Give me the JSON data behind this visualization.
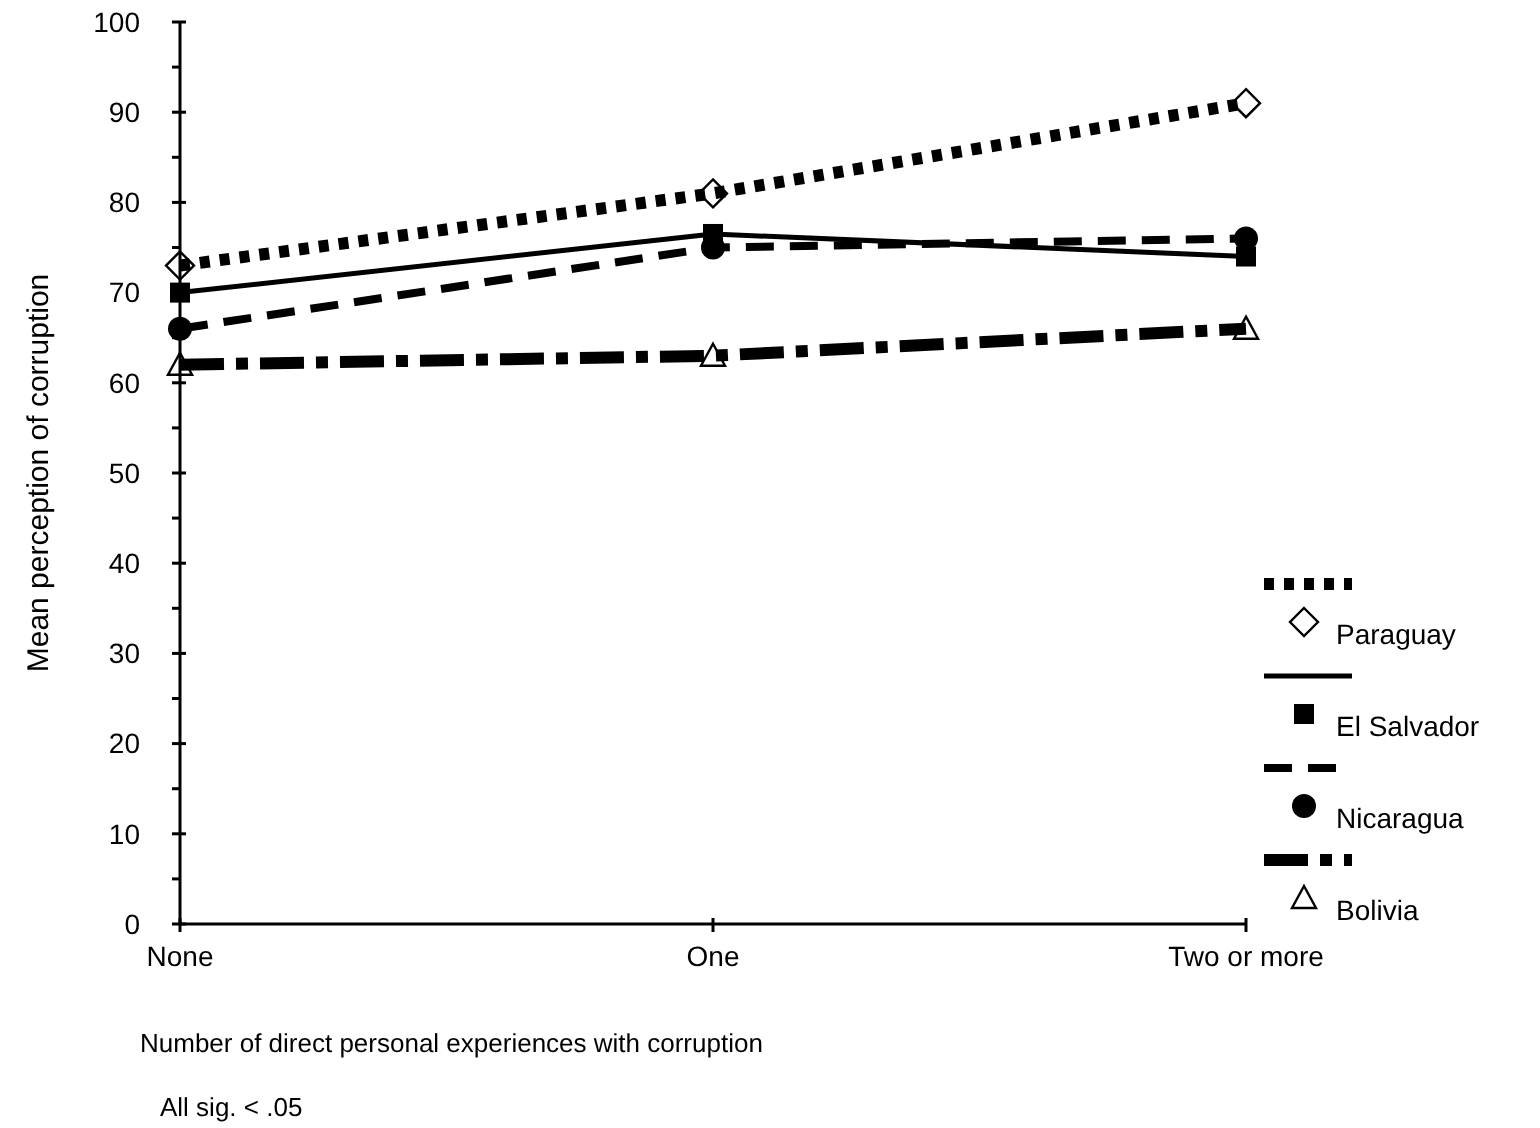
{
  "chart_data": {
    "type": "line",
    "categories": [
      "None",
      "One",
      "Two or more"
    ],
    "xlabel": "Number of direct personal experiences with corruption",
    "ylabel": "Mean perception of corruption",
    "ylim": [
      0,
      100
    ],
    "yticks": [
      0,
      {
        "value": 5,
        "label": null
      },
      10,
      {
        "value": 15,
        "label": null
      },
      20,
      {
        "value": 25,
        "label": null
      },
      30,
      {
        "value": 35,
        "label": null
      },
      40,
      {
        "value": 45,
        "label": null
      },
      50,
      {
        "value": 55,
        "label": null
      },
      60,
      {
        "value": 65,
        "label": null
      },
      70,
      {
        "value": 75,
        "label": null
      },
      80,
      {
        "value": 85,
        "label": null
      },
      90,
      {
        "value": 95,
        "label": null
      },
      100
    ],
    "series": [
      {
        "name": "Paraguay",
        "color": "#000000",
        "values": [
          73,
          81,
          91
        ],
        "marker": "diamond",
        "line_style": "dotted"
      },
      {
        "name": "El Salvador",
        "color": "#000000",
        "values": [
          70,
          76.5,
          74
        ],
        "marker": "square",
        "line_style": "solid"
      },
      {
        "name": "Nicaragua",
        "color": "#000000",
        "values": [
          66,
          75,
          76
        ],
        "marker": "circle",
        "line_style": "dashed"
      },
      {
        "name": "Bolivia",
        "color": "#000000",
        "values": [
          62,
          63,
          66
        ],
        "marker": "triangle",
        "line_style": "dashdot"
      }
    ],
    "legend": "right",
    "grid": false,
    "annotations": [
      "All sig. < .05"
    ]
  }
}
